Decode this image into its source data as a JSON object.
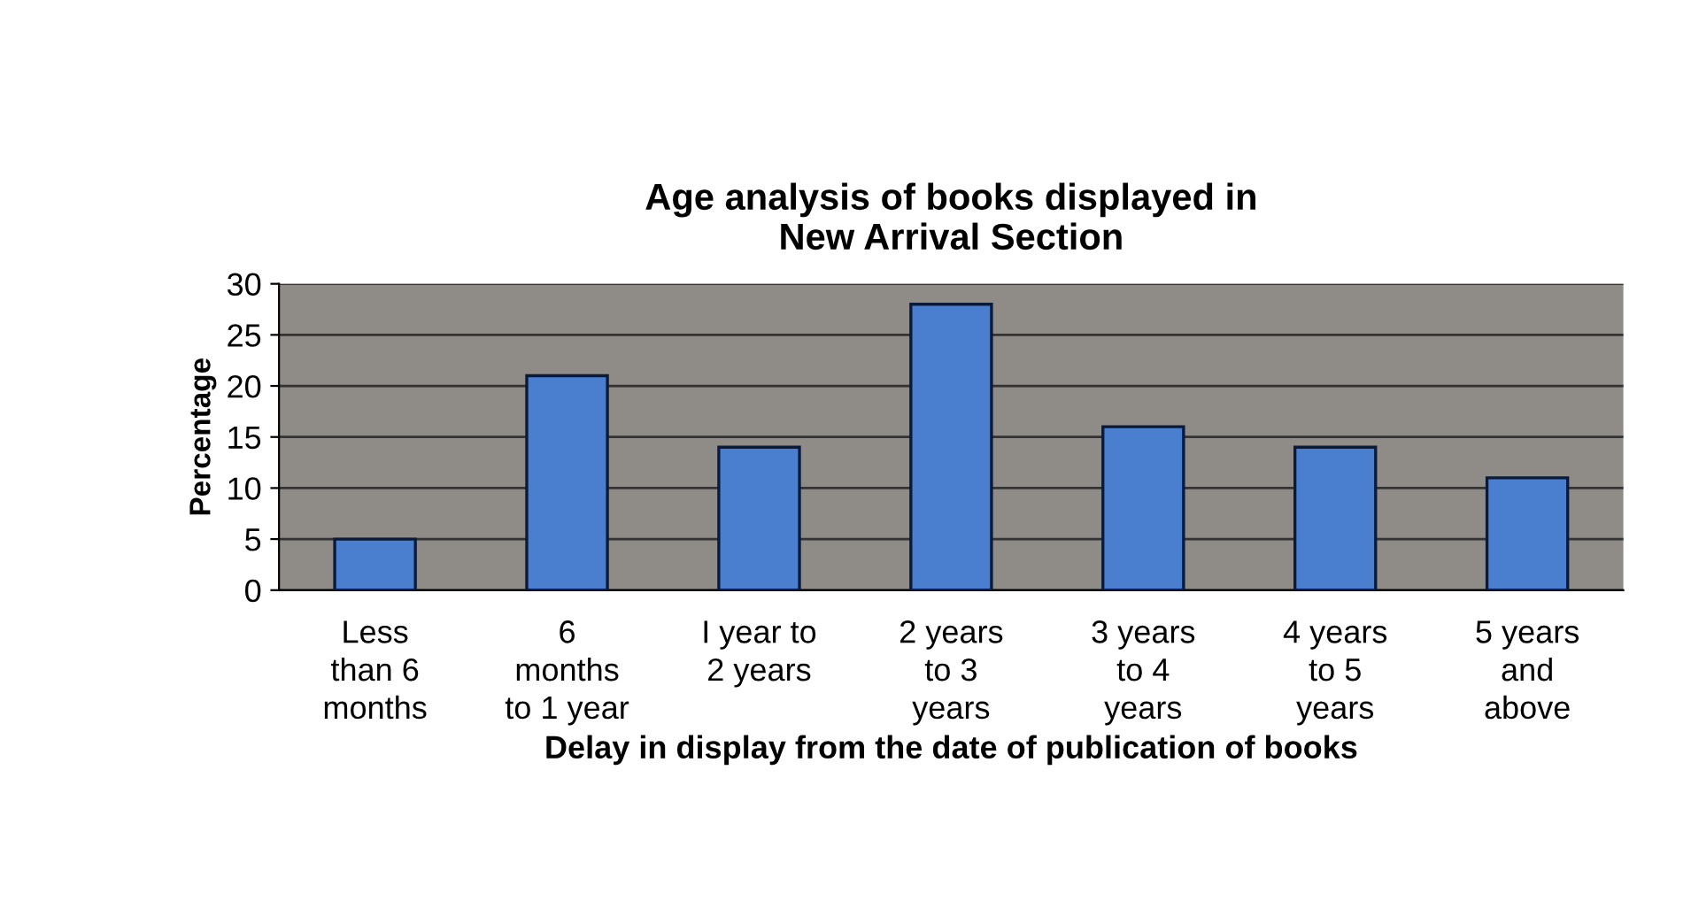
{
  "chart_data": {
    "type": "bar",
    "title": "Age analysis of books displayed in\nNew Arrival Section",
    "xlabel": "Delay in display from the date of publication of books",
    "ylabel": "Percentage",
    "categories": [
      "Less\nthan 6\nmonths",
      "6\nmonths\nto 1 year",
      "I year to\n2 years",
      "2 years\nto 3\nyears",
      "3 years\nto 4\nyears",
      "4 years\nto 5\nyears",
      "5 years\nand\nabove"
    ],
    "values": [
      5,
      21,
      14,
      28,
      16,
      14,
      11
    ],
    "color": "#4a7fd0",
    "ylim": [
      0,
      30
    ],
    "yticks": [
      0,
      5,
      10,
      15,
      20,
      25,
      30
    ],
    "grid": "y"
  }
}
